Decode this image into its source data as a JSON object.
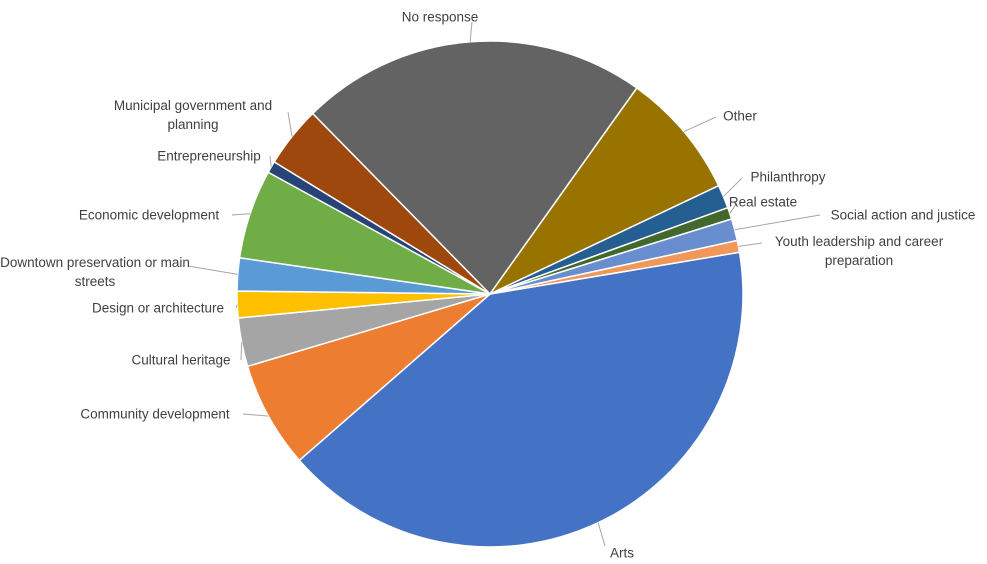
{
  "chart_data": {
    "type": "pie",
    "categories": [
      "Arts",
      "Community development",
      "Cultural heritage",
      "Design or architecture",
      "Downtown preservation or main streets",
      "Economic development",
      "Entrepreneurship",
      "Municipal government and planning",
      "No response",
      "Other",
      "Philanthropy",
      "Real estate",
      "Social action and justice",
      "Youth leadership and career preparation"
    ],
    "values": [
      41.2,
      6.8,
      3.1,
      1.7,
      2.1,
      5.7,
      0.75,
      3.9,
      22.2,
      8.1,
      1.5,
      0.75,
      1.4,
      0.75
    ],
    "colors": [
      "#4472c4",
      "#ed7d31",
      "#a5a5a5",
      "#ffc000",
      "#5b9bd5",
      "#70ad47",
      "#264478",
      "#9e480e",
      "#636363",
      "#997300",
      "#255e91",
      "#43682b",
      "#698ed0",
      "#f1975a"
    ]
  }
}
